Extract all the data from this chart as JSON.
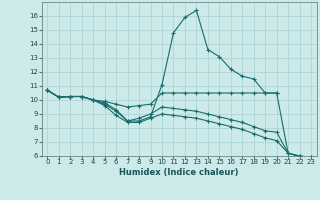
{
  "xlabel": "Humidex (Indice chaleur)",
  "bg_color": "#cceaea",
  "grid_color": "#aad0d0",
  "line_color": "#1a6b6b",
  "xlim": [
    -0.5,
    23.5
  ],
  "ylim": [
    6,
    17
  ],
  "xticks": [
    0,
    1,
    2,
    3,
    4,
    5,
    6,
    7,
    8,
    9,
    10,
    11,
    12,
    13,
    14,
    15,
    16,
    17,
    18,
    19,
    20,
    21,
    22,
    23
  ],
  "yticks": [
    6,
    7,
    8,
    9,
    10,
    11,
    12,
    13,
    14,
    15,
    16
  ],
  "lines": [
    {
      "x": [
        0,
        1,
        2,
        3,
        4,
        5,
        6,
        7,
        8,
        9,
        10,
        11,
        12,
        13,
        14,
        15,
        16,
        17,
        18,
        19,
        20
      ],
      "y": [
        10.7,
        10.2,
        10.25,
        10.25,
        10.0,
        9.8,
        9.3,
        8.5,
        8.5,
        8.8,
        11.1,
        14.8,
        15.9,
        16.4,
        13.6,
        13.1,
        12.2,
        11.7,
        11.5,
        10.5,
        10.5
      ]
    },
    {
      "x": [
        0,
        1,
        2,
        3,
        4,
        5,
        6,
        7,
        8,
        9,
        10,
        11,
        12,
        13,
        14,
        15,
        16,
        17,
        18,
        19,
        20,
        21,
        22,
        23
      ],
      "y": [
        10.7,
        10.2,
        10.25,
        10.25,
        10.0,
        9.9,
        9.7,
        9.5,
        9.6,
        9.7,
        10.5,
        10.5,
        10.5,
        10.5,
        10.5,
        10.5,
        10.5,
        10.5,
        10.5,
        10.5,
        10.5,
        6.2,
        6.0,
        5.9
      ]
    },
    {
      "x": [
        0,
        1,
        2,
        3,
        4,
        5,
        6,
        7,
        8,
        9,
        10,
        11,
        12,
        13,
        14,
        15,
        16,
        17,
        18,
        19,
        20,
        21,
        22,
        23
      ],
      "y": [
        10.7,
        10.2,
        10.25,
        10.25,
        10.0,
        9.7,
        9.2,
        8.5,
        8.7,
        9.0,
        9.5,
        9.4,
        9.3,
        9.2,
        9.0,
        8.8,
        8.6,
        8.4,
        8.1,
        7.8,
        7.7,
        6.2,
        6.0,
        5.9
      ]
    },
    {
      "x": [
        0,
        1,
        2,
        3,
        4,
        5,
        6,
        7,
        8,
        9,
        10,
        11,
        12,
        13,
        14,
        15,
        16,
        17,
        18,
        19,
        20,
        21,
        22,
        23
      ],
      "y": [
        10.7,
        10.2,
        10.25,
        10.25,
        10.0,
        9.6,
        8.9,
        8.4,
        8.4,
        8.7,
        9.0,
        8.9,
        8.8,
        8.7,
        8.5,
        8.3,
        8.1,
        7.9,
        7.6,
        7.3,
        7.1,
        6.2,
        5.95,
        5.85
      ]
    }
  ]
}
